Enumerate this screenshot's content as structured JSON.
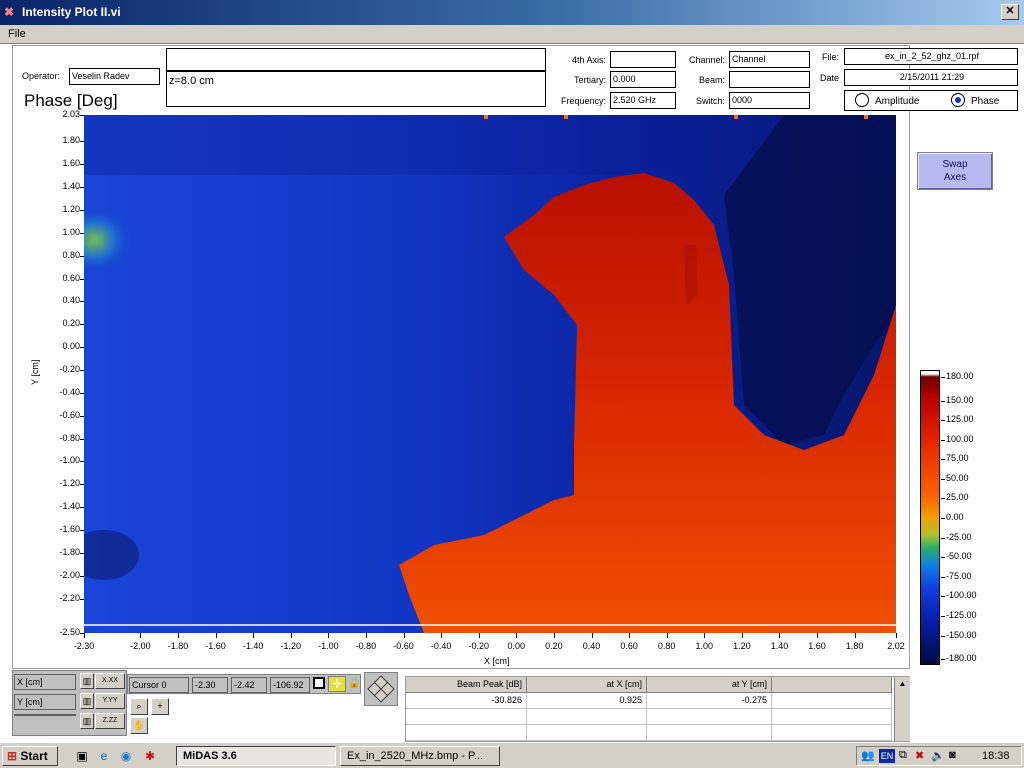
{
  "window": {
    "title": "Intensity Plot II.vi",
    "close_glyph": "✕"
  },
  "menu": {
    "file": "File"
  },
  "header": {
    "operator_label": "Operator:",
    "operator_value": "Veselin Radev",
    "comment_top": "",
    "comment_bottom": "z=8.0 cm",
    "phase_title": "Phase [Deg]",
    "fourth_axis_label": "4th Axis:",
    "fourth_axis_value": "",
    "tertiary_label": "Tertiary:",
    "tertiary_value": "0.000",
    "frequency_label": "Frequency:",
    "frequency_value": "2.520 GHz",
    "channel_label": "Channel:",
    "channel_value": "Channel",
    "beam_label": "Beam:",
    "beam_value": "",
    "switch_label": "Switch:",
    "switch_value": "0000",
    "file_label": "File:",
    "file_value": "ex_in_2_52_ghz_01.rpf",
    "date_label": "Date",
    "date_value": "2/15/2011 21:29",
    "mode_options": [
      "Amplitude",
      "Phase"
    ],
    "mode_selected": "Phase"
  },
  "swap_axes": {
    "line1": "Swap",
    "line2": "Axes"
  },
  "plot": {
    "title": "Phase [Deg]",
    "x_axis_label": "X  [cm]",
    "y_axis_label": "Y  [cm]",
    "x_ticks": [
      "-2.30",
      "-2.00",
      "-1.80",
      "-1.60",
      "-1.40",
      "-1.20",
      "-1.00",
      "-0.80",
      "-0.60",
      "-0.40",
      "-0.20",
      "0.00",
      "0.20",
      "0.40",
      "0.60",
      "0.80",
      "1.00",
      "1.20",
      "1.40",
      "1.60",
      "1.80",
      "2.02"
    ],
    "x_tick_values": [
      -2.3,
      -2.0,
      -1.8,
      -1.6,
      -1.4,
      -1.2,
      -1.0,
      -0.8,
      -0.6,
      -0.4,
      -0.2,
      0.0,
      0.2,
      0.4,
      0.6,
      0.8,
      1.0,
      1.2,
      1.4,
      1.6,
      1.8,
      2.02
    ],
    "y_ticks": [
      "2.03",
      "1.80",
      "1.60",
      "1.40",
      "1.20",
      "1.00",
      "0.80",
      "0.60",
      "0.40",
      "0.20",
      "0.00",
      "-0.20",
      "-0.40",
      "-0.60",
      "-0.80",
      "-1.00",
      "-1.20",
      "-1.40",
      "-1.60",
      "-1.80",
      "-2.00",
      "-2.20",
      "-2.50"
    ],
    "y_tick_values": [
      2.03,
      1.8,
      1.6,
      1.4,
      1.2,
      1.0,
      0.8,
      0.6,
      0.4,
      0.2,
      0.0,
      -0.2,
      -0.4,
      -0.6,
      -0.8,
      -1.0,
      -1.2,
      -1.4,
      -1.6,
      -1.8,
      -2.0,
      -2.2,
      -2.5
    ],
    "x_range": [
      -2.3,
      2.02
    ],
    "y_range": [
      -2.5,
      2.03
    ]
  },
  "color_scale": {
    "ticks": [
      "180.00",
      "150.00",
      "125.00",
      "100.00",
      "75.00",
      "50.00",
      "25.00",
      "0.00",
      "-25.00",
      "-50.00",
      "-75.00",
      "-100.00",
      "-125.00",
      "-150.00",
      "-180.00"
    ],
    "tick_values": [
      180,
      150,
      125,
      100,
      75,
      50,
      25,
      0,
      -25,
      -50,
      -75,
      -100,
      -125,
      -150,
      -180
    ],
    "range": [
      -180,
      180
    ]
  },
  "axis_controls": {
    "x_label": "X  [cm]",
    "y_label": "Y  [cm]",
    "z_label": "",
    "x_fmt": "X.XX",
    "y_fmt": "Y.YY",
    "z_fmt": "Z.ZZ"
  },
  "cursor": {
    "name": "Cursor 0",
    "x": "-2.30",
    "y": "-2.42",
    "z": "-106.92"
  },
  "results": {
    "headers": [
      "Beam Peak [dB]",
      "at X  [cm]",
      "at Y  [cm]",
      ""
    ],
    "rows": [
      [
        "-30.826",
        "0.925",
        "-0.275",
        ""
      ],
      [
        "",
        "",
        "",
        ""
      ],
      [
        "",
        "",
        "",
        ""
      ]
    ]
  },
  "taskbar": {
    "start": "Start",
    "tasks": [
      "MiDAS 3.6",
      "Ex_in_2520_MHz.bmp - P..."
    ],
    "language": "EN",
    "clock": "18:38"
  }
}
